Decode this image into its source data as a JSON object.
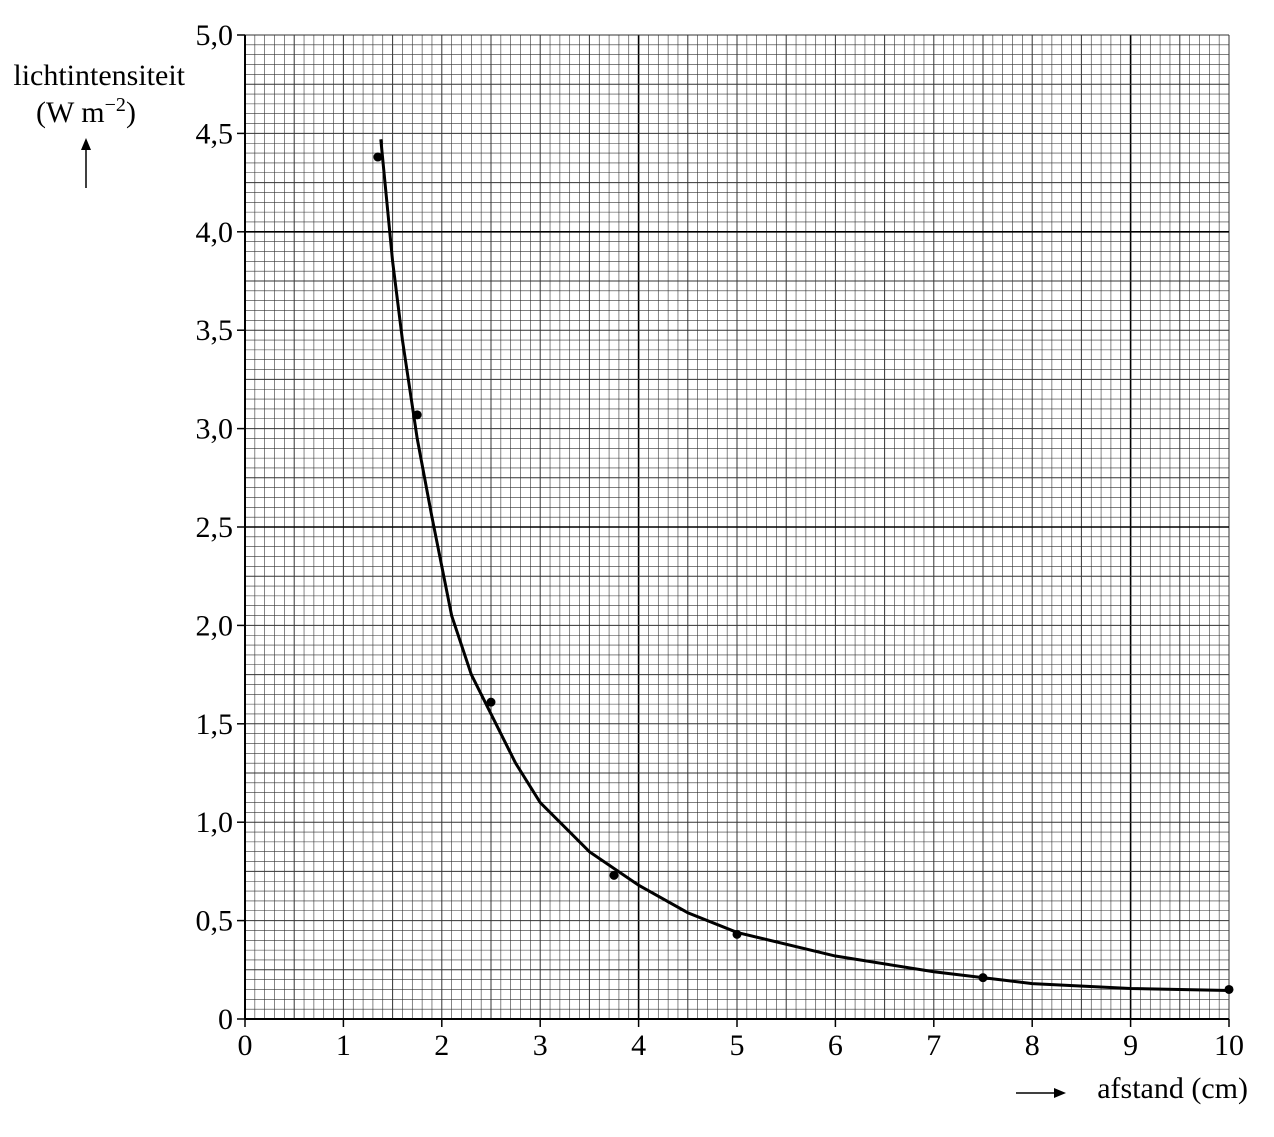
{
  "chart_data": {
    "type": "scatter",
    "y_label": "lichtintensiteit",
    "y_unit": [
      "(W m",
      "−2",
      ")"
    ],
    "x_label": "afstand (cm)",
    "xlim": [
      0,
      10
    ],
    "xticks": [
      0,
      1,
      2,
      3,
      4,
      5,
      6,
      7,
      8,
      9,
      10
    ],
    "ylim": [
      0,
      5
    ],
    "yticks": [
      0,
      {
        "value": 0.5,
        "label": "0,5"
      },
      {
        "value": 1,
        "label": "1,0"
      },
      {
        "value": 1.5,
        "label": "1,5"
      },
      {
        "value": 2,
        "label": "2,0"
      },
      {
        "value": 2.5,
        "label": "2,5"
      },
      {
        "value": 3,
        "label": "3,0"
      },
      {
        "value": 3.5,
        "label": "3,5"
      },
      {
        "value": 4,
        "label": "4,0"
      },
      {
        "value": 4.5,
        "label": "4,5"
      },
      {
        "value": 5,
        "label": "5,0"
      }
    ],
    "grid": true,
    "color": "#000000",
    "series": [
      {
        "type": "scatter",
        "x": [
          1.35,
          1.75,
          2.5,
          3.75,
          5.0,
          7.5,
          10
        ],
        "values": [
          4.38,
          3.07,
          1.61,
          0.73,
          0.43,
          0.21,
          0.15
        ]
      },
      {
        "type": "line",
        "x": [
          1.38,
          1.5,
          1.6,
          1.75,
          1.9,
          2.1,
          2.3,
          2.5,
          2.75,
          3,
          3.5,
          4,
          4.5,
          5,
          6,
          7,
          8,
          9,
          10
        ],
        "values": [
          4.47,
          3.85,
          3.45,
          2.95,
          2.55,
          2.05,
          1.75,
          1.55,
          1.3,
          1.1,
          0.85,
          0.68,
          0.54,
          0.44,
          0.32,
          0.24,
          0.18,
          0.155,
          0.145
        ]
      }
    ]
  }
}
